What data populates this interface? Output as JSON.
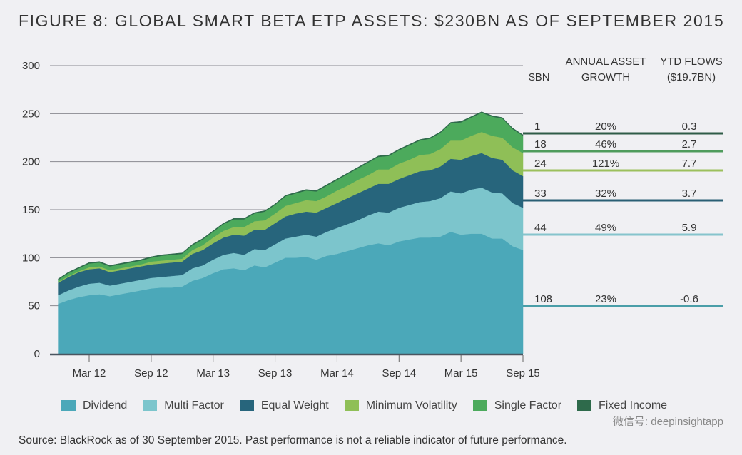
{
  "chart_data": {
    "type": "area",
    "stacked": true,
    "title": "FIGURE 8: GLOBAL SMART BETA ETP ASSETS: $230BN AS OF SEPTEMBER 2015",
    "ylabel": "",
    "xlabel": "",
    "ylim": [
      0,
      300
    ],
    "yticks": [
      "0",
      "50",
      "100",
      "150",
      "200",
      "250",
      "300"
    ],
    "xticks": [
      "Mar 12",
      "Sep 12",
      "Mar 13",
      "Sep 13",
      "Mar 14",
      "Sep 14",
      "Mar 15",
      "Sep 15"
    ],
    "x_start": "Dec 2011",
    "x_end": "Sep 2015",
    "x_frequency": "monthly",
    "grid": "horizontal",
    "legend_position": "bottom",
    "series": [
      {
        "name": "Dividend",
        "color": "#4ba8b9",
        "values": [
          52,
          56,
          59,
          61,
          62,
          60,
          62,
          64,
          66,
          68,
          69,
          69,
          70,
          76,
          79,
          84,
          88,
          89,
          87,
          92,
          90,
          95,
          100,
          100,
          101,
          98,
          102,
          104,
          107,
          110,
          113,
          115,
          113,
          117,
          119,
          121,
          121,
          122,
          127,
          124,
          125,
          125,
          120,
          120,
          112,
          108
        ]
      },
      {
        "name": "Multi Factor",
        "color": "#7cc5cc",
        "values": [
          9,
          10,
          11,
          12,
          12,
          11,
          11,
          11,
          11,
          11,
          11,
          12,
          12,
          13,
          13,
          14,
          15,
          16,
          16,
          17,
          18,
          19,
          20,
          22,
          23,
          24,
          25,
          27,
          28,
          29,
          31,
          33,
          34,
          35,
          36,
          37,
          38,
          40,
          42,
          43,
          46,
          48,
          48,
          47,
          45,
          44
        ]
      },
      {
        "name": "Equal Weight",
        "color": "#27657c",
        "values": [
          13,
          14,
          15,
          15,
          15,
          14,
          14,
          14,
          14,
          14,
          14,
          14,
          14,
          15,
          16,
          17,
          18,
          19,
          20,
          20,
          21,
          22,
          23,
          24,
          24,
          25,
          25,
          26,
          27,
          28,
          28,
          29,
          30,
          30,
          31,
          32,
          32,
          33,
          34,
          35,
          35,
          36,
          36,
          35,
          34,
          33
        ]
      },
      {
        "name": "Minimum Volatility",
        "color": "#8fbf57",
        "values": [
          1,
          1,
          1,
          2,
          2,
          2,
          2,
          2,
          2,
          3,
          3,
          3,
          3,
          4,
          5,
          6,
          7,
          8,
          9,
          9,
          10,
          10,
          11,
          11,
          12,
          12,
          12,
          13,
          13,
          14,
          14,
          15,
          15,
          16,
          16,
          17,
          17,
          18,
          19,
          20,
          21,
          22,
          23,
          23,
          24,
          24
        ]
      },
      {
        "name": "Single Factor",
        "color": "#4caa5c",
        "values": [
          2,
          3,
          3,
          4,
          4,
          4,
          4,
          4,
          4,
          4,
          5,
          5,
          5,
          5,
          6,
          6,
          7,
          8,
          8,
          8,
          9,
          9,
          10,
          10,
          10,
          10,
          11,
          11,
          12,
          12,
          13,
          13,
          14,
          14,
          15,
          15,
          16,
          17,
          18,
          19,
          19,
          20,
          20,
          20,
          19,
          18
        ]
      },
      {
        "name": "Fixed Income",
        "color": "#2e6a4b",
        "values": [
          1,
          1,
          1,
          1,
          1,
          1,
          1,
          1,
          1,
          1,
          1,
          1,
          1,
          1,
          1,
          1,
          1,
          1,
          1,
          1,
          1,
          1,
          1,
          1,
          1,
          1,
          1,
          1,
          1,
          1,
          1,
          1,
          1,
          1,
          1,
          1,
          1,
          1,
          1,
          1,
          1,
          1,
          1,
          1,
          1,
          1
        ]
      }
    ],
    "table": {
      "headers": [
        "$BN",
        "ANNUAL ASSET GROWTH",
        "YTD FLOWS ($19.7BN)"
      ],
      "header_lines": [
        [
          "$BN"
        ],
        [
          "ANNUAL ASSET",
          "GROWTH"
        ],
        [
          "YTD FLOWS",
          "($19.7BN)"
        ]
      ],
      "rows": [
        {
          "series": "Fixed Income",
          "bn": "1",
          "growth": "20%",
          "flows": "0.3",
          "color": "#2f5c47"
        },
        {
          "series": "Single Factor",
          "bn": "18",
          "growth": "46%",
          "flows": "2.7",
          "color": "#4f9c5d"
        },
        {
          "series": "Minimum Volatility",
          "bn": "24",
          "growth": "121%",
          "flows": "7.7",
          "color": "#9cc05c"
        },
        {
          "series": "Equal Weight",
          "bn": "33",
          "growth": "32%",
          "flows": "3.7",
          "color": "#2a5f74"
        },
        {
          "series": "Multi Factor",
          "bn": "44",
          "growth": "49%",
          "flows": "5.9",
          "color": "#86c4cc"
        },
        {
          "series": "Dividend",
          "bn": "108",
          "growth": "23%",
          "flows": "-0.6",
          "color": "#4a9ea8"
        }
      ]
    }
  },
  "source": "Source: BlackRock as of 30 September 2015. Past performance is not a reliable indicator of future performance.",
  "watermark": "微信号: deepinsightapp"
}
